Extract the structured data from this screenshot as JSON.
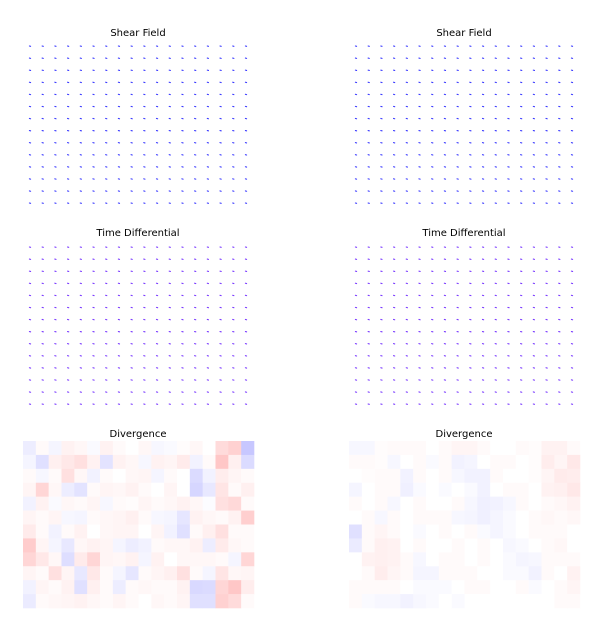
{
  "titles": [
    "Shear Field",
    "Shear Field",
    "Time Differential",
    "Time Differential",
    "Divergence",
    "Divergence"
  ],
  "chart_data": [
    {
      "type": "quiver",
      "title": "Shear Field",
      "grid": [
        18,
        14
      ],
      "arrow_color": "#3a3aff",
      "note": "field of very short arrows, nearly uniform"
    },
    {
      "type": "quiver",
      "title": "Shear Field",
      "grid": [
        18,
        14
      ],
      "arrow_color": "#3a3aff"
    },
    {
      "type": "quiver",
      "title": "Time Differential",
      "grid": [
        18,
        14
      ],
      "arrow_color": "#7a3aff"
    },
    {
      "type": "quiver",
      "title": "Time Differential",
      "grid": [
        18,
        14
      ],
      "arrow_color": "#7a3aff"
    },
    {
      "type": "heatmap",
      "title": "Divergence",
      "colormap": "bwr",
      "vmin": -1,
      "vmax": 1,
      "cols": 18,
      "values": [
        [
          -0.07,
          0.02,
          -0.04,
          0.05,
          0.03,
          -0.02,
          0.05,
          0.02,
          0.0,
          0.03,
          -0.03,
          -0.02,
          0.01,
          0.03,
          0.0,
          0.14,
          0.18,
          -0.22
        ],
        [
          -0.04,
          -0.12,
          0.06,
          0.09,
          0.12,
          0.05,
          -0.11,
          0.05,
          0.03,
          -0.03,
          0.05,
          0.04,
          0.08,
          -0.05,
          0.02,
          0.22,
          0.06,
          -0.14
        ],
        [
          0.02,
          -0.03,
          0.02,
          0.12,
          0.03,
          -0.05,
          0.02,
          0.0,
          0.03,
          0.04,
          -0.04,
          0.02,
          0.0,
          -0.14,
          -0.05,
          0.07,
          0.04,
          0.02
        ],
        [
          0.04,
          0.16,
          0.03,
          -0.07,
          -0.11,
          0.02,
          0.04,
          0.03,
          0.05,
          0.02,
          0.0,
          0.04,
          0.0,
          -0.16,
          -0.09,
          0.1,
          0.02,
          0.06
        ],
        [
          -0.05,
          0.05,
          -0.02,
          0.03,
          0.02,
          0.04,
          -0.03,
          0.02,
          0.01,
          0.04,
          0.02,
          0.03,
          0.05,
          0.03,
          -0.01,
          0.12,
          0.15,
          0.02
        ],
        [
          0.04,
          0.02,
          0.04,
          -0.03,
          -0.04,
          0.02,
          0.03,
          0.04,
          0.06,
          0.02,
          -0.03,
          -0.04,
          -0.1,
          0.05,
          0.03,
          0.02,
          0.05,
          0.19
        ],
        [
          0.08,
          0.02,
          -0.05,
          0.02,
          0.05,
          0.0,
          0.03,
          0.04,
          0.04,
          0.0,
          0.04,
          -0.05,
          -0.12,
          0.02,
          0.06,
          0.12,
          0.02,
          0.02
        ],
        [
          0.2,
          0.04,
          -0.04,
          -0.09,
          0.03,
          0.05,
          0.04,
          -0.04,
          -0.07,
          -0.05,
          0.02,
          0.03,
          0.03,
          0.05,
          -0.07,
          0.08,
          0.03,
          0.02
        ],
        [
          0.16,
          0.09,
          0.03,
          -0.13,
          0.08,
          0.16,
          0.04,
          0.03,
          0.05,
          -0.04,
          0.05,
          0.0,
          0.03,
          0.03,
          0.03,
          0.02,
          -0.04,
          0.16
        ],
        [
          0.04,
          0.02,
          0.12,
          0.04,
          -0.09,
          0.09,
          0.02,
          -0.04,
          -0.1,
          0.02,
          0.04,
          0.06,
          0.12,
          0.02,
          -0.04,
          0.1,
          0.03,
          0.04
        ],
        [
          -0.05,
          0.04,
          0.02,
          0.05,
          -0.12,
          0.06,
          0.02,
          -0.07,
          0.02,
          0.03,
          0.02,
          0.02,
          0.05,
          -0.15,
          -0.14,
          0.16,
          0.22,
          0.07
        ],
        [
          -0.08,
          0.02,
          0.03,
          0.04,
          0.05,
          0.03,
          0.02,
          0.04,
          0.02,
          0.0,
          0.03,
          0.02,
          0.04,
          -0.12,
          -0.12,
          0.18,
          0.14,
          0.02
        ]
      ]
    },
    {
      "type": "heatmap",
      "title": "Divergence",
      "colormap": "bwr",
      "vmin": -1,
      "vmax": 1,
      "cols": 18,
      "values": [
        [
          -0.03,
          -0.03,
          0.01,
          0.02,
          0.02,
          0.02,
          0.0,
          0.02,
          0.04,
          0.04,
          0.02,
          0.0,
          0.0,
          0.02,
          0.01,
          0.05,
          0.05,
          0.02
        ],
        [
          0.02,
          0.02,
          0.01,
          -0.03,
          0.0,
          0.02,
          -0.02,
          0.02,
          -0.05,
          -0.04,
          0.0,
          0.02,
          0.02,
          0.0,
          0.01,
          0.07,
          0.04,
          0.09
        ],
        [
          0.0,
          0.01,
          0.02,
          0.02,
          -0.05,
          0.02,
          0.0,
          0.02,
          -0.03,
          -0.05,
          -0.05,
          0.02,
          0.0,
          0.0,
          0.01,
          0.04,
          0.08,
          0.07
        ],
        [
          -0.04,
          0.0,
          0.02,
          0.02,
          -0.06,
          -0.02,
          0.0,
          -0.02,
          0.0,
          -0.02,
          -0.05,
          0.0,
          0.02,
          0.02,
          0.0,
          0.05,
          0.06,
          0.09
        ],
        [
          0.02,
          0.0,
          0.02,
          -0.03,
          0.0,
          0.02,
          0.0,
          0.0,
          0.02,
          -0.03,
          -0.06,
          -0.05,
          -0.03,
          0.02,
          0.0,
          0.02,
          0.03,
          0.05
        ],
        [
          0.0,
          0.02,
          -0.03,
          0.02,
          0.0,
          0.02,
          0.02,
          0.02,
          -0.03,
          -0.04,
          -0.06,
          -0.04,
          -0.02,
          0.0,
          0.02,
          0.03,
          0.02,
          0.03
        ],
        [
          -0.12,
          0.02,
          0.04,
          0.02,
          0.0,
          -0.02,
          0.0,
          0.02,
          0.0,
          0.02,
          -0.02,
          -0.04,
          -0.02,
          0.0,
          0.02,
          0.02,
          0.02,
          0.0
        ],
        [
          -0.08,
          0.02,
          0.06,
          0.05,
          0.0,
          0.02,
          0.0,
          0.0,
          0.02,
          0.0,
          0.02,
          0.0,
          -0.03,
          -0.02,
          0.0,
          0.02,
          0.03,
          0.0
        ],
        [
          0.0,
          0.05,
          0.06,
          0.05,
          0.02,
          -0.03,
          0.0,
          0.02,
          0.02,
          0.0,
          0.02,
          0.0,
          -0.02,
          -0.04,
          -0.03,
          0.02,
          0.02,
          0.02
        ],
        [
          0.0,
          0.02,
          0.07,
          0.04,
          0.02,
          -0.04,
          -0.04,
          0.02,
          0.02,
          0.02,
          0.0,
          0.0,
          -0.02,
          -0.02,
          -0.05,
          0.02,
          0.0,
          0.05
        ],
        [
          0.02,
          0.02,
          0.02,
          0.02,
          0.0,
          -0.02,
          -0.02,
          -0.02,
          0.0,
          0.02,
          0.02,
          0.0,
          0.0,
          0.02,
          -0.02,
          0.0,
          0.02,
          0.04
        ],
        [
          0.02,
          -0.02,
          -0.03,
          -0.03,
          -0.05,
          -0.03,
          -0.02,
          0.0,
          -0.02,
          0.0,
          0.0,
          0.0,
          0.0,
          0.0,
          0.0,
          0.0,
          0.02,
          0.02
        ]
      ]
    }
  ]
}
